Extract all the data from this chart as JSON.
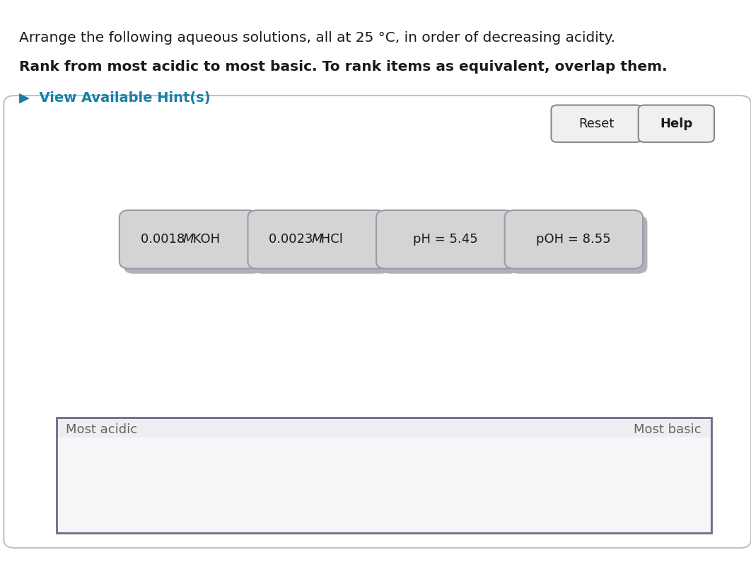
{
  "title_line1": "Arrange the following aqueous solutions, all at 25 °C, in order of decreasing acidity.",
  "title_line2": "Rank from most acidic to most basic. To rank items as equivalent, overlap them.",
  "hint_text": "▶  View Available Hint(s)",
  "hint_color": "#1a7fa8",
  "bg_color": "#ffffff",
  "reset_label": "Reset",
  "help_label": "Help",
  "button_texts": [
    [
      "0.0018 ",
      "M",
      " KOH"
    ],
    [
      "0.0023 ",
      "M",
      " HCl"
    ],
    [
      "pH = 5.45",
      "",
      ""
    ],
    [
      "pOH = 8.55",
      "",
      ""
    ]
  ],
  "button_bg": "#d4d4d4",
  "button_border": "#9a9aaa",
  "shadow_color": "#b0b0b8",
  "most_acidic_label": "Most acidic",
  "most_basic_label": "Most basic",
  "figsize": [
    10.62,
    7.94
  ],
  "dpi": 100
}
